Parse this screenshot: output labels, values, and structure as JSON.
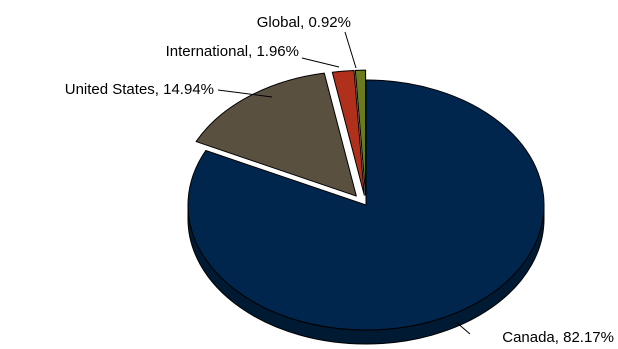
{
  "chart_data": {
    "type": "pie",
    "title": "",
    "style": "3d-exploded",
    "slices": [
      {
        "label": "Canada, 82.17%",
        "value": 82.17,
        "color": "#00264d",
        "side_color": "#001a33"
      },
      {
        "label": "United States, 14.94%",
        "value": 14.94,
        "color": "#5a5040",
        "side_color": "#3c3529"
      },
      {
        "label": "International, 1.96%",
        "value": 1.96,
        "color": "#b0301c",
        "side_color": "#7a2012"
      },
      {
        "label": "Global, 0.92%",
        "value": 0.92,
        "color": "#6b7a1e",
        "side_color": "#4a5515"
      }
    ]
  }
}
